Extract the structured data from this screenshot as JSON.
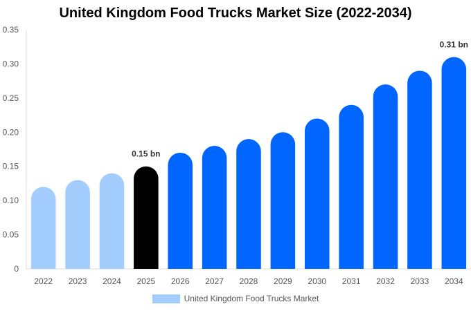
{
  "chart_data": {
    "type": "bar",
    "title": "United Kingdom Food Trucks Market Size (2022-2034)",
    "xlabel": "",
    "ylabel": "",
    "categories": [
      "2022",
      "2023",
      "2024",
      "2025",
      "2026",
      "2027",
      "2028",
      "2029",
      "2030",
      "2031",
      "2032",
      "2033",
      "2034"
    ],
    "series": [
      {
        "name": "United Kingdom Food Trucks Market",
        "values": [
          0.12,
          0.13,
          0.14,
          0.15,
          0.17,
          0.18,
          0.19,
          0.2,
          0.22,
          0.24,
          0.27,
          0.29,
          0.31
        ]
      }
    ],
    "ylim": [
      0,
      0.35
    ],
    "yticks": [
      "0",
      "0.05",
      "0.10",
      "0.15",
      "0.20",
      "0.25",
      "0.30",
      "0.35"
    ],
    "ytick_values": [
      0,
      0.05,
      0.1,
      0.15,
      0.2,
      0.25,
      0.3,
      0.35
    ],
    "annotations": [
      {
        "category": "2025",
        "text": "0.15 bn"
      },
      {
        "category": "2034",
        "text": "0.31 bn"
      }
    ],
    "bar_colors": {
      "historical": "#a3cdfd",
      "current": "#000000",
      "forecast": "#0066ff"
    },
    "historical_categories": [
      "2022",
      "2023",
      "2024"
    ],
    "current_category": "2025",
    "grid": false,
    "legend_position": "bottom",
    "legend_color": "#a3cdfd"
  }
}
